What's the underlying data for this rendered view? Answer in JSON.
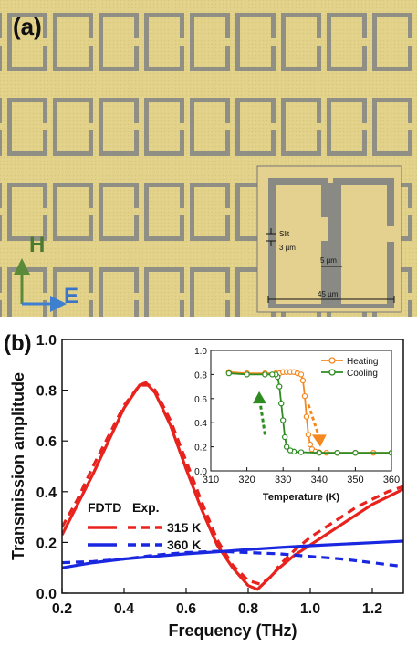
{
  "panel_a": {
    "label": "(a)",
    "inset_labels": {
      "slit": "Slit",
      "slit_width": "3 µm",
      "gap": "5 µm",
      "size": "45 µm"
    },
    "axis_h": "H",
    "axis_e": "E",
    "colors": {
      "gold": "#e0cf86",
      "gap": "#8f8f86",
      "h_arrow": "#5a8a3a",
      "e_arrow": "#3f7fd0"
    }
  },
  "panel_b": {
    "label": "(b)"
  },
  "chart_data": [
    {
      "type": "line",
      "xlabel": "Frequency (THz)",
      "ylabel": "Transmission amplitude",
      "xlim": [
        0.2,
        1.3
      ],
      "ylim": [
        0.0,
        1.0
      ],
      "xticks": [
        "0.2",
        "0.4",
        "0.6",
        "0.8",
        "1.0",
        "1.2"
      ],
      "yticks": [
        "0.0",
        "0.2",
        "0.4",
        "0.6",
        "0.8",
        "1.0"
      ],
      "legend": {
        "headers": [
          "FDTD",
          "Exp."
        ],
        "entries": [
          "315 K",
          "360 K"
        ],
        "placement": "left-middle"
      },
      "series": [
        {
          "name": "315 K",
          "method": "FDTD",
          "style": "solid",
          "color": "#e8221d",
          "x": [
            0.2,
            0.25,
            0.3,
            0.35,
            0.4,
            0.45,
            0.47,
            0.5,
            0.55,
            0.6,
            0.65,
            0.7,
            0.75,
            0.8,
            0.83,
            0.86,
            0.9,
            0.95,
            1.0,
            1.05,
            1.1,
            1.15,
            1.2,
            1.25,
            1.3
          ],
          "y": [
            0.23,
            0.35,
            0.47,
            0.6,
            0.73,
            0.82,
            0.83,
            0.79,
            0.66,
            0.49,
            0.33,
            0.19,
            0.1,
            0.03,
            0.015,
            0.05,
            0.1,
            0.15,
            0.19,
            0.23,
            0.27,
            0.31,
            0.35,
            0.38,
            0.41
          ]
        },
        {
          "name": "315 K",
          "method": "Exp.",
          "style": "dashed",
          "color": "#e8221d",
          "x": [
            0.2,
            0.25,
            0.3,
            0.35,
            0.4,
            0.45,
            0.48,
            0.5,
            0.55,
            0.6,
            0.65,
            0.7,
            0.75,
            0.8,
            0.84,
            0.88,
            0.9,
            0.95,
            1.0,
            1.05,
            1.1,
            1.15,
            1.2,
            1.25,
            1.3
          ],
          "y": [
            0.26,
            0.37,
            0.5,
            0.62,
            0.74,
            0.82,
            0.82,
            0.8,
            0.68,
            0.52,
            0.36,
            0.21,
            0.11,
            0.05,
            0.035,
            0.07,
            0.11,
            0.17,
            0.22,
            0.26,
            0.3,
            0.34,
            0.37,
            0.4,
            0.42
          ]
        },
        {
          "name": "360 K",
          "method": "FDTD",
          "style": "solid",
          "color": "#1a27e0",
          "x": [
            0.2,
            0.3,
            0.4,
            0.5,
            0.6,
            0.7,
            0.8,
            0.9,
            1.0,
            1.1,
            1.2,
            1.3
          ],
          "y": [
            0.1,
            0.12,
            0.135,
            0.145,
            0.155,
            0.163,
            0.172,
            0.18,
            0.187,
            0.193,
            0.199,
            0.205
          ]
        },
        {
          "name": "360 K",
          "method": "Exp.",
          "style": "dashed",
          "color": "#1a27e0",
          "x": [
            0.2,
            0.3,
            0.4,
            0.5,
            0.6,
            0.7,
            0.8,
            0.9,
            1.0,
            1.1,
            1.2,
            1.3
          ],
          "y": [
            0.12,
            0.125,
            0.135,
            0.15,
            0.16,
            0.165,
            0.16,
            0.155,
            0.145,
            0.135,
            0.12,
            0.105
          ]
        }
      ]
    },
    {
      "type": "line",
      "inset": true,
      "xlabel": "Temperature (K)",
      "xlim": [
        310,
        360
      ],
      "ylim": [
        0.0,
        1.0
      ],
      "xticks": [
        "310",
        "320",
        "330",
        "340",
        "350",
        "360"
      ],
      "yticks": [
        "0.0",
        "0.2",
        "0.4",
        "0.6",
        "0.8",
        "1.0"
      ],
      "legend": {
        "entries": [
          "Heating",
          "Cooling"
        ],
        "placement": "top-right"
      },
      "series": [
        {
          "name": "Heating",
          "color": "#f5881f",
          "marker": "open-circle",
          "x": [
            315,
            320,
            325,
            328,
            329,
            330,
            331,
            332,
            333,
            334,
            335,
            335.5,
            336,
            336.5,
            337,
            337.5,
            338,
            339,
            340,
            342,
            345,
            350,
            355,
            360
          ],
          "y": [
            0.82,
            0.81,
            0.81,
            0.81,
            0.81,
            0.82,
            0.82,
            0.82,
            0.82,
            0.81,
            0.8,
            0.75,
            0.62,
            0.45,
            0.3,
            0.22,
            0.18,
            0.16,
            0.155,
            0.15,
            0.15,
            0.15,
            0.15,
            0.15
          ]
        },
        {
          "name": "Cooling",
          "color": "#2e8b22",
          "marker": "open-circle",
          "x": [
            360,
            350,
            345,
            340,
            335,
            333,
            332,
            331,
            330.5,
            330,
            329.5,
            329,
            328.5,
            328,
            327,
            325,
            320,
            315
          ],
          "y": [
            0.15,
            0.15,
            0.15,
            0.15,
            0.155,
            0.16,
            0.17,
            0.2,
            0.28,
            0.42,
            0.56,
            0.7,
            0.78,
            0.8,
            0.8,
            0.8,
            0.8,
            0.81
          ]
        }
      ]
    }
  ]
}
